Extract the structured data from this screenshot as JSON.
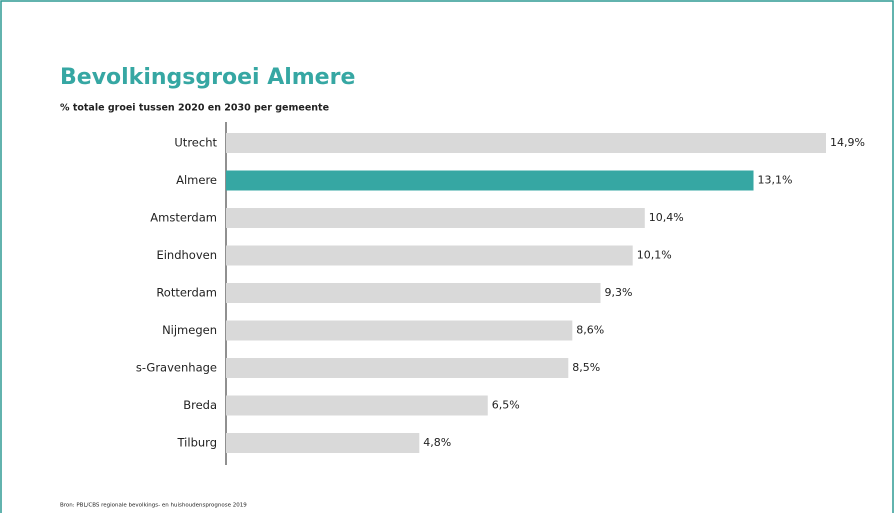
{
  "chart_data": {
    "type": "barh",
    "title": "Bevolkingsgroei Almere",
    "subtitle": "% totale groei tussen 2020 en 2030 per gemeente",
    "categories": [
      "Utrecht",
      "Almere",
      "Amsterdam",
      "Eindhoven",
      "Rotterdam",
      "Nijmegen",
      "s-Gravenhage",
      "Breda",
      "Tilburg"
    ],
    "values": [
      14.9,
      13.1,
      10.4,
      10.1,
      9.3,
      8.6,
      8.5,
      6.5,
      4.8
    ],
    "value_labels": [
      "14,9%",
      "13,1%",
      "10,4%",
      "10,1%",
      "9,3%",
      "8,6%",
      "8,5%",
      "6,5%",
      "4,8%"
    ],
    "colors": [
      "#d9d9d9",
      "#36a7a3",
      "#d9d9d9",
      "#d9d9d9",
      "#d9d9d9",
      "#d9d9d9",
      "#d9d9d9",
      "#d9d9d9",
      "#d9d9d9"
    ],
    "source": "Bron: PBL/CBS regionale  bevolkings- en huishoudensprognose 2019"
  }
}
